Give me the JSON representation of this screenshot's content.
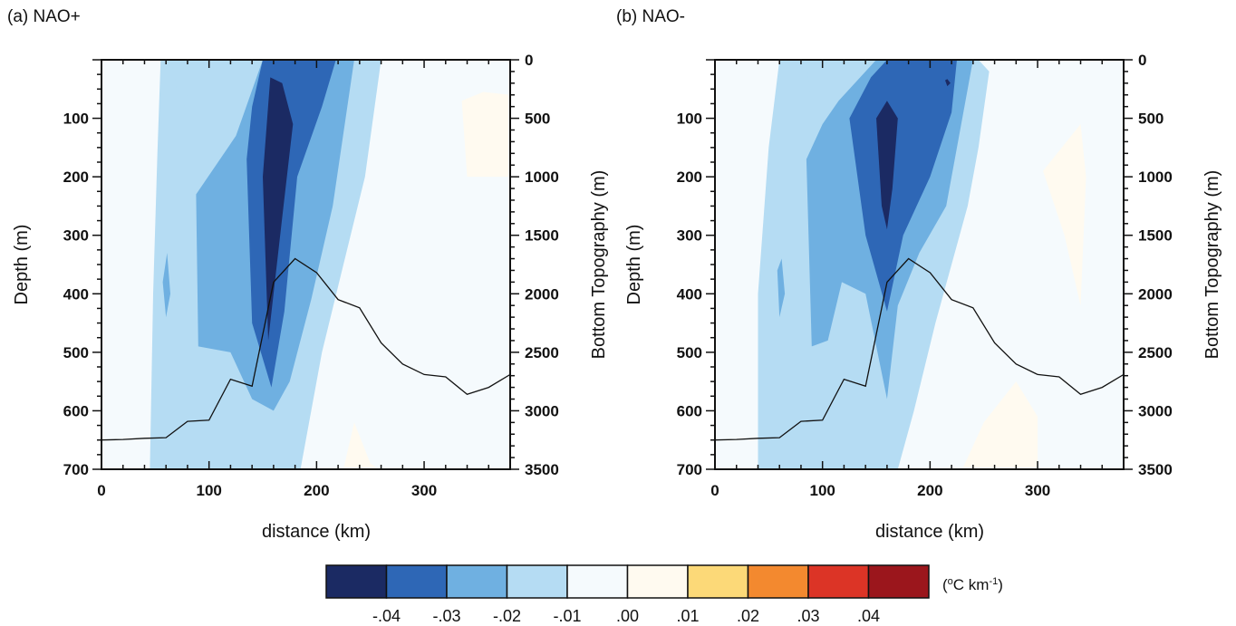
{
  "chart_data": [
    {
      "type": "contour",
      "panel": "a",
      "title": "(a) NAO+",
      "xlabel": "distance (km)",
      "ylabel": "Depth (m)",
      "y2label": "Bottom Topography (m)",
      "xlim": [
        0,
        380
      ],
      "ylim": [
        700,
        0
      ],
      "y2lim": [
        3500,
        0
      ],
      "x_ticks": [
        0,
        100,
        200,
        300
      ],
      "y_ticks": [
        100,
        200,
        300,
        400,
        500,
        600,
        700
      ],
      "y2_ticks": [
        0,
        500,
        1000,
        1500,
        2000,
        2500,
        3000,
        3500
      ],
      "levels": [
        "<-0.04",
        "-0.04 to -0.03",
        "-0.03 to -0.02",
        "-0.02 to -0.01",
        "-0.01 to 0.00",
        "0.00 to 0.01"
      ],
      "regions": [
        {
          "level": "-0.02 to -0.01",
          "points": [
            [
              45,
              700
            ],
            [
              48,
              400
            ],
            [
              52,
              160
            ],
            [
              55,
              0
            ],
            [
              195,
              0
            ],
            [
              260,
              0
            ],
            [
              245,
              200
            ],
            [
              225,
              350
            ],
            [
              205,
              500
            ],
            [
              185,
              700
            ]
          ]
        },
        {
          "level": "-0.02 to -0.01",
          "points": [
            [
              65,
              0
            ],
            [
              70,
              50
            ],
            [
              77,
              80
            ],
            [
              80,
              60
            ],
            [
              85,
              0
            ]
          ]
        },
        {
          "level": "-0.03 to -0.02",
          "points": [
            [
              88,
              230
            ],
            [
              90,
              490
            ],
            [
              120,
              500
            ],
            [
              140,
              580
            ],
            [
              160,
              600
            ],
            [
              175,
              550
            ],
            [
              195,
              410
            ],
            [
              215,
              250
            ],
            [
              235,
              0
            ],
            [
              150,
              0
            ],
            [
              125,
              130
            ]
          ]
        },
        {
          "level": "-0.03 to -0.02",
          "points": [
            [
              57,
              380
            ],
            [
              60,
              440
            ],
            [
              64,
              400
            ],
            [
              61,
              330
            ]
          ]
        },
        {
          "level": "-0.04 to -0.03",
          "points": [
            [
              135,
              170
            ],
            [
              140,
              450
            ],
            [
              158,
              560
            ],
            [
              170,
              430
            ],
            [
              182,
              200
            ],
            [
              205,
              80
            ],
            [
              218,
              0
            ],
            [
              150,
              0
            ],
            [
              140,
              80
            ]
          ]
        },
        {
          "level": "<-0.04",
          "points": [
            [
              150,
              200
            ],
            [
              155,
              480
            ],
            [
              168,
              270
            ],
            [
              178,
              110
            ],
            [
              168,
              40
            ],
            [
              157,
              30
            ]
          ]
        },
        {
          "level": "0.00 to 0.01",
          "points": [
            [
              335,
              70
            ],
            [
              340,
              200
            ],
            [
              380,
              200
            ],
            [
              380,
              60
            ],
            [
              355,
              55
            ]
          ]
        },
        {
          "level": "0.00 to 0.01",
          "points": [
            [
              225,
              700
            ],
            [
              235,
              620
            ],
            [
              250,
              690
            ],
            [
              258,
              700
            ]
          ]
        }
      ],
      "topography": {
        "x": [
          0,
          20,
          40,
          60,
          80,
          100,
          120,
          140,
          160,
          180,
          200,
          220,
          240,
          260,
          280,
          300,
          320,
          340,
          360,
          380
        ],
        "y": [
          3250,
          3245,
          3235,
          3230,
          3090,
          3080,
          2730,
          2790,
          1900,
          1700,
          1820,
          2050,
          2120,
          2420,
          2600,
          2690,
          2710,
          2860,
          2800,
          2690
        ]
      }
    },
    {
      "type": "contour",
      "panel": "b",
      "title": "(b) NAO-",
      "xlabel": "distance (km)",
      "ylabel": "Depth (m)",
      "y2label": "Bottom Topography (m)",
      "xlim": [
        0,
        380
      ],
      "ylim": [
        700,
        0
      ],
      "y2lim": [
        3500,
        0
      ],
      "x_ticks": [
        0,
        100,
        200,
        300
      ],
      "y_ticks": [
        100,
        200,
        300,
        400,
        500,
        600,
        700
      ],
      "y2_ticks": [
        0,
        500,
        1000,
        1500,
        2000,
        2500,
        3000,
        3500
      ],
      "levels": [
        "<-0.04",
        "-0.04 to -0.03",
        "-0.03 to -0.02",
        "-0.02 to -0.01",
        "-0.01 to 0.00",
        "0.00 to 0.01"
      ],
      "regions": [
        {
          "level": "-0.02 to -0.01",
          "points": [
            [
              40,
              700
            ],
            [
              40,
              400
            ],
            [
              50,
              150
            ],
            [
              60,
              0
            ],
            [
              245,
              0
            ],
            [
              255,
              20
            ],
            [
              245,
              150
            ],
            [
              235,
              250
            ],
            [
              205,
              450
            ],
            [
              185,
              600
            ],
            [
              170,
              700
            ]
          ]
        },
        {
          "level": "-0.02 to -0.01",
          "points": [
            [
              85,
              0
            ],
            [
              88,
              60
            ],
            [
              92,
              0
            ]
          ]
        },
        {
          "level": "-0.03 to -0.02",
          "points": [
            [
              85,
              170
            ],
            [
              90,
              490
            ],
            [
              105,
              480
            ],
            [
              118,
              380
            ],
            [
              140,
              400
            ],
            [
              160,
              580
            ],
            [
              170,
              420
            ],
            [
              190,
              330
            ],
            [
              215,
              250
            ],
            [
              240,
              0
            ],
            [
              150,
              0
            ],
            [
              115,
              70
            ],
            [
              100,
              110
            ]
          ]
        },
        {
          "level": "-0.03 to -0.02",
          "points": [
            [
              58,
              360
            ],
            [
              60,
              440
            ],
            [
              65,
              400
            ],
            [
              62,
              340
            ]
          ]
        },
        {
          "level": "-0.04 to -0.03",
          "points": [
            [
              125,
              100
            ],
            [
              140,
              300
            ],
            [
              160,
              430
            ],
            [
              175,
              300
            ],
            [
              200,
              200
            ],
            [
              220,
              90
            ],
            [
              225,
              0
            ],
            [
              160,
              0
            ],
            [
              145,
              30
            ]
          ]
        },
        {
          "level": "<-0.04",
          "points": [
            [
              150,
              100
            ],
            [
              155,
              250
            ],
            [
              160,
              290
            ],
            [
              165,
              220
            ],
            [
              170,
              100
            ],
            [
              160,
              70
            ]
          ]
        },
        {
          "level": "<-0.04",
          "points": [
            [
              214,
              35
            ],
            [
              216,
              45
            ],
            [
              219,
              40
            ],
            [
              216,
              33
            ]
          ]
        },
        {
          "level": "0.00 to 0.01",
          "points": [
            [
              305,
              190
            ],
            [
              325,
              300
            ],
            [
              340,
              420
            ],
            [
              345,
              200
            ],
            [
              340,
              110
            ]
          ]
        },
        {
          "level": "0.00 to 0.01",
          "points": [
            [
              230,
              700
            ],
            [
              250,
              620
            ],
            [
              280,
              550
            ],
            [
              300,
              610
            ],
            [
              300,
              700
            ]
          ]
        }
      ],
      "topography": {
        "x": [
          0,
          20,
          40,
          60,
          80,
          100,
          120,
          140,
          160,
          180,
          200,
          220,
          240,
          260,
          280,
          300,
          320,
          340,
          360,
          380
        ],
        "y": [
          3250,
          3245,
          3235,
          3230,
          3090,
          3080,
          2730,
          2790,
          1900,
          1700,
          1820,
          2050,
          2120,
          2420,
          2600,
          2690,
          2710,
          2860,
          2800,
          2690
        ]
      }
    }
  ],
  "colorbar": {
    "unit_base": "(",
    "unit_sup1": "o",
    "unit_mid": "C km",
    "unit_sup2": "-1",
    "unit_end": ")",
    "colors": [
      "#1b2a63",
      "#2e67b6",
      "#6fb0e1",
      "#b5dcf3",
      "#f5fafd",
      "#fffaf0",
      "#fcd978",
      "#f3892f",
      "#dc3426",
      "#9b161c"
    ],
    "labels": [
      "-.04",
      "-.03",
      "-.02",
      "-.01",
      ".00",
      ".01",
      ".02",
      ".03",
      ".04"
    ]
  },
  "level_colors": {
    "<-0.04": "#1b2a63",
    "-0.04 to -0.03": "#2e67b6",
    "-0.03 to -0.02": "#6fb0e1",
    "-0.02 to -0.01": "#b5dcf3",
    "-0.01 to 0.00": "#f5fafd",
    "0.00 to 0.01": "#fffaf0"
  }
}
